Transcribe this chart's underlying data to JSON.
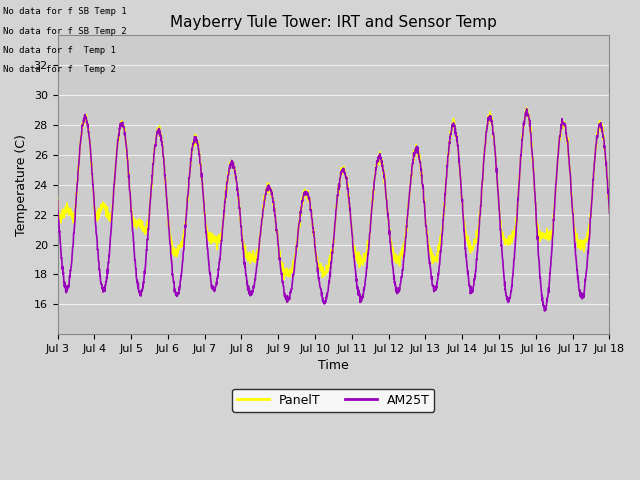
{
  "title": "Mayberry Tule Tower: IRT and Sensor Temp",
  "xlabel": "Time",
  "ylabel": "Temperature (C)",
  "ylim": [
    14,
    34
  ],
  "yticks": [
    16,
    18,
    20,
    22,
    24,
    26,
    28,
    30,
    32
  ],
  "xtick_labels": [
    "Jul 3",
    "Jul 4",
    "Jul 5",
    "Jul 6",
    "Jul 7",
    "Jul 8",
    "Jul 9",
    "Jul 10",
    "Jul 11",
    "Jul 12",
    "Jul 13",
    "Jul 14",
    "Jul 15",
    "Jul 16",
    "Jul 17",
    "Jul 18"
  ],
  "panel_color": "#ffff00",
  "am25_color": "#9900bb",
  "fig_bg_color": "#d4d4d4",
  "plot_bg_color": "#cccccc",
  "grid_color": "#f0f0f0",
  "legend_labels": [
    "PanelT",
    "AM25T"
  ],
  "no_data_texts": [
    "No data for f SB Temp 1",
    "No data for f SB Temp 2",
    "No data for f  Temp 1",
    "No data for f  Temp 2"
  ],
  "title_fontsize": 11,
  "axis_fontsize": 9,
  "tick_fontsize": 8,
  "linewidth_panel": 1.2,
  "linewidth_am25": 1.2
}
